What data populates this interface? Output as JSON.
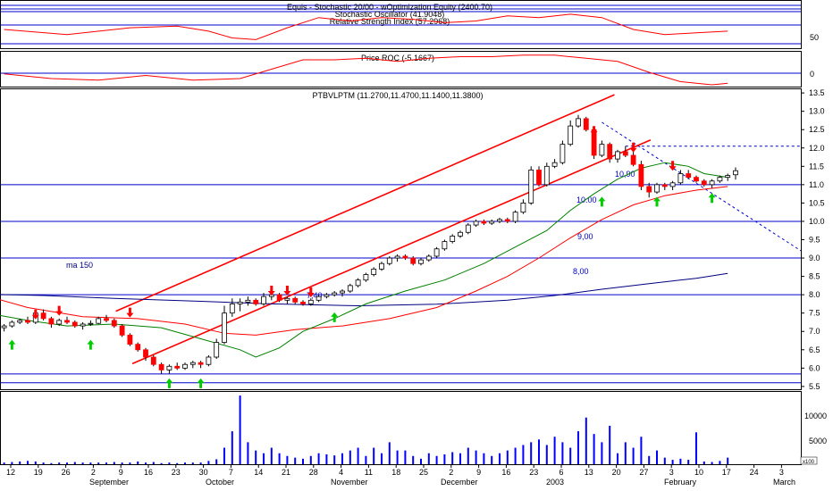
{
  "panels": {
    "indicator_title_1": "Equis - Stochastic 20/00 - wOptimization Equity (2400.70)",
    "indicator_title_2": "Stochastic Oscillator (41.9048)",
    "indicator_title_3": "Relative Strength Index (57.2968)",
    "roc_title": "Price ROC (-5.1667)",
    "price_title": "PTBVLPTM (11.2700,11.4700,11.1400,11.3800)"
  },
  "indicator_axis_labels": [
    "50"
  ],
  "roc_axis_labels": [
    "0"
  ],
  "volume_axis_labels": [
    "10000",
    "5000"
  ],
  "volume_multiplier": "x100",
  "annotations": {
    "ma_label": "ma 150",
    "level_740": "7,40",
    "level_1090": "10,90",
    "level_1000": "10.00",
    "level_900": "9,00",
    "level_800": "8,00"
  },
  "x_day_labels": [
    "12",
    "19",
    "26",
    "2",
    "9",
    "16",
    "23",
    "30",
    "7",
    "14",
    "21",
    "28",
    "4",
    "11",
    "18",
    "25",
    "2",
    "9",
    "16",
    "23",
    "6",
    "13",
    "20",
    "27",
    "3",
    "10",
    "17",
    "24",
    "3"
  ],
  "x_month_labels": [
    "September",
    "October",
    "November",
    "December",
    "2003",
    "February",
    "March"
  ],
  "colors": {
    "up_candle": "#ffffff",
    "down_candle": "#ff0000",
    "ma_fast": "#008000",
    "ma_slow": "#ff0000",
    "ma_150": "#000080",
    "channel": "#ff0000",
    "levels": "#0000cc",
    "volume": "#0000ff",
    "up_arrow": "#00cc00",
    "down_arrow": "#ff0000"
  },
  "chart_data": {
    "type": "candlestick",
    "title": "PTBVLPTM",
    "ylim": [
      5.4,
      13.6
    ],
    "y_ticks": [
      5.5,
      6.0,
      6.5,
      7.0,
      7.5,
      8.0,
      8.5,
      9.0,
      9.5,
      10.0,
      10.5,
      11.0,
      11.5,
      12.0,
      12.5,
      13.0,
      13.5
    ],
    "y_tick_labels": [
      "5.5",
      "6.0",
      "6.5",
      "7.0",
      "7.5",
      "8.0",
      "8.5",
      "9.0",
      "9.5",
      "10.0",
      "10.5",
      "11.0",
      "11.5",
      "12.0",
      "12.5",
      "13.0",
      "13.5"
    ],
    "volume_ylim": [
      0,
      13000
    ],
    "horizontal_levels": [
      5.6,
      5.84,
      8.0,
      9.0,
      10.0,
      11.0
    ],
    "dashed_level": 12.05,
    "channel_lines": [
      {
        "from_day": 14.2,
        "from": 7.55,
        "to_day": 77.6,
        "to": 13.45
      },
      {
        "from_day": 16.3,
        "from": 6.12,
        "to_day": 82.2,
        "to": 12.22
      }
    ],
    "ma_150": [
      [
        -3.6,
        8.02
      ],
      [
        5,
        7.98
      ],
      [
        14,
        7.9
      ],
      [
        25,
        7.82
      ],
      [
        34,
        7.75
      ],
      [
        45,
        7.7
      ],
      [
        55,
        7.74
      ],
      [
        64,
        7.85
      ],
      [
        70,
        7.98
      ],
      [
        76,
        8.15
      ],
      [
        82,
        8.3
      ],
      [
        88,
        8.45
      ],
      [
        92,
        8.58
      ]
    ],
    "ma_fast": [
      [
        -3.6,
        7.55
      ],
      [
        3,
        7.3
      ],
      [
        8,
        7.15
      ],
      [
        14,
        7.2
      ],
      [
        20,
        7.1
      ],
      [
        25,
        6.8
      ],
      [
        30,
        6.5
      ],
      [
        32,
        6.3
      ],
      [
        35,
        6.55
      ],
      [
        38,
        7.0
      ],
      [
        42,
        7.35
      ],
      [
        46,
        7.75
      ],
      [
        51,
        8.1
      ],
      [
        56,
        8.4
      ],
      [
        61,
        8.85
      ],
      [
        65,
        9.3
      ],
      [
        69,
        9.75
      ],
      [
        72,
        10.3
      ],
      [
        75,
        10.75
      ],
      [
        78,
        11.15
      ],
      [
        81,
        11.45
      ],
      [
        84,
        11.6
      ],
      [
        87,
        11.5
      ],
      [
        89,
        11.3
      ],
      [
        92,
        11.2
      ]
    ],
    "ma_slow": [
      [
        -3.6,
        8.05
      ],
      [
        3,
        7.65
      ],
      [
        10,
        7.4
      ],
      [
        17,
        7.35
      ],
      [
        23,
        7.2
      ],
      [
        28,
        6.95
      ],
      [
        32,
        6.9
      ],
      [
        37,
        7.05
      ],
      [
        43,
        7.15
      ],
      [
        49,
        7.35
      ],
      [
        55,
        7.65
      ],
      [
        60,
        8.1
      ],
      [
        64,
        8.5
      ],
      [
        68,
        9.0
      ],
      [
        72,
        9.55
      ],
      [
        76,
        10.05
      ],
      [
        80,
        10.45
      ],
      [
        84,
        10.7
      ],
      [
        88,
        10.85
      ],
      [
        92,
        10.95
      ]
    ],
    "candles": [
      {
        "o": 7.1,
        "h": 7.2,
        "l": 7.0,
        "c": 7.15
      },
      {
        "o": 7.15,
        "h": 7.3,
        "l": 7.1,
        "c": 7.25
      },
      {
        "o": 7.25,
        "h": 7.35,
        "l": 7.2,
        "c": 7.3
      },
      {
        "o": 7.3,
        "h": 7.4,
        "l": 7.2,
        "c": 7.25
      },
      {
        "o": 7.25,
        "h": 7.55,
        "l": 7.2,
        "c": 7.5
      },
      {
        "o": 7.5,
        "h": 7.6,
        "l": 7.3,
        "c": 7.35
      },
      {
        "o": 7.35,
        "h": 7.4,
        "l": 7.1,
        "c": 7.2
      },
      {
        "o": 7.2,
        "h": 7.35,
        "l": 7.15,
        "c": 7.3
      },
      {
        "o": 7.3,
        "h": 7.4,
        "l": 7.2,
        "c": 7.25
      },
      {
        "o": 7.25,
        "h": 7.3,
        "l": 7.1,
        "c": 7.15
      },
      {
        "o": 7.15,
        "h": 7.25,
        "l": 7.05,
        "c": 7.2
      },
      {
        "o": 7.2,
        "h": 7.3,
        "l": 7.15,
        "c": 7.22
      },
      {
        "o": 7.22,
        "h": 7.4,
        "l": 7.2,
        "c": 7.35
      },
      {
        "o": 7.35,
        "h": 7.45,
        "l": 7.25,
        "c": 7.3
      },
      {
        "o": 7.3,
        "h": 7.35,
        "l": 7.1,
        "c": 7.15
      },
      {
        "o": 7.15,
        "h": 7.2,
        "l": 6.85,
        "c": 6.9
      },
      {
        "o": 6.9,
        "h": 6.95,
        "l": 6.6,
        "c": 6.65
      },
      {
        "o": 6.65,
        "h": 6.7,
        "l": 6.45,
        "c": 6.5
      },
      {
        "o": 6.5,
        "h": 6.55,
        "l": 6.2,
        "c": 6.3
      },
      {
        "o": 6.3,
        "h": 6.35,
        "l": 6.05,
        "c": 6.1
      },
      {
        "o": 6.1,
        "h": 6.15,
        "l": 5.85,
        "c": 5.95
      },
      {
        "o": 5.95,
        "h": 6.1,
        "l": 5.85,
        "c": 6.05
      },
      {
        "o": 6.05,
        "h": 6.15,
        "l": 5.95,
        "c": 6.0
      },
      {
        "o": 6.0,
        "h": 6.15,
        "l": 5.95,
        "c": 6.1
      },
      {
        "o": 6.1,
        "h": 6.2,
        "l": 6.0,
        "c": 6.15
      },
      {
        "o": 6.15,
        "h": 6.2,
        "l": 6.0,
        "c": 6.1
      },
      {
        "o": 6.1,
        "h": 6.35,
        "l": 6.05,
        "c": 6.3
      },
      {
        "o": 6.3,
        "h": 6.8,
        "l": 6.25,
        "c": 6.7
      },
      {
        "o": 6.7,
        "h": 7.7,
        "l": 6.65,
        "c": 7.5
      },
      {
        "o": 7.5,
        "h": 7.9,
        "l": 7.4,
        "c": 7.75
      },
      {
        "o": 7.75,
        "h": 7.9,
        "l": 7.55,
        "c": 7.8
      },
      {
        "o": 7.8,
        "h": 7.95,
        "l": 7.7,
        "c": 7.85
      },
      {
        "o": 7.85,
        "h": 7.9,
        "l": 7.7,
        "c": 7.75
      },
      {
        "o": 7.75,
        "h": 8.05,
        "l": 7.7,
        "c": 7.95
      },
      {
        "o": 7.95,
        "h": 8.1,
        "l": 7.85,
        "c": 8.0
      },
      {
        "o": 8.0,
        "h": 8.05,
        "l": 7.8,
        "c": 7.85
      },
      {
        "o": 7.85,
        "h": 7.95,
        "l": 7.75,
        "c": 7.9
      },
      {
        "o": 7.9,
        "h": 7.95,
        "l": 7.75,
        "c": 7.8
      },
      {
        "o": 7.8,
        "h": 7.85,
        "l": 7.7,
        "c": 7.75
      },
      {
        "o": 7.75,
        "h": 7.9,
        "l": 7.7,
        "c": 7.85
      },
      {
        "o": 7.85,
        "h": 8.0,
        "l": 7.8,
        "c": 7.95
      },
      {
        "o": 7.95,
        "h": 8.05,
        "l": 7.9,
        "c": 8.0
      },
      {
        "o": 8.0,
        "h": 8.1,
        "l": 7.95,
        "c": 8.05
      },
      {
        "o": 8.05,
        "h": 8.15,
        "l": 7.95,
        "c": 8.1
      },
      {
        "o": 8.1,
        "h": 8.3,
        "l": 8.05,
        "c": 8.25
      },
      {
        "o": 8.25,
        "h": 8.45,
        "l": 8.2,
        "c": 8.4
      },
      {
        "o": 8.4,
        "h": 8.6,
        "l": 8.35,
        "c": 8.55
      },
      {
        "o": 8.55,
        "h": 8.75,
        "l": 8.5,
        "c": 8.7
      },
      {
        "o": 8.7,
        "h": 8.9,
        "l": 8.65,
        "c": 8.85
      },
      {
        "o": 8.85,
        "h": 9.05,
        "l": 8.8,
        "c": 9.0
      },
      {
        "o": 9.0,
        "h": 9.1,
        "l": 8.9,
        "c": 9.05
      },
      {
        "o": 9.05,
        "h": 9.1,
        "l": 8.95,
        "c": 9.0
      },
      {
        "o": 9.0,
        "h": 9.05,
        "l": 8.8,
        "c": 8.85
      },
      {
        "o": 8.85,
        "h": 9.0,
        "l": 8.8,
        "c": 8.95
      },
      {
        "o": 8.95,
        "h": 9.1,
        "l": 8.9,
        "c": 9.05
      },
      {
        "o": 9.05,
        "h": 9.3,
        "l": 9.0,
        "c": 9.25
      },
      {
        "o": 9.25,
        "h": 9.5,
        "l": 9.2,
        "c": 9.45
      },
      {
        "o": 9.45,
        "h": 9.65,
        "l": 9.4,
        "c": 9.6
      },
      {
        "o": 9.6,
        "h": 9.75,
        "l": 9.55,
        "c": 9.7
      },
      {
        "o": 9.7,
        "h": 9.95,
        "l": 9.65,
        "c": 9.9
      },
      {
        "o": 9.9,
        "h": 10.05,
        "l": 9.85,
        "c": 10.0
      },
      {
        "o": 10.0,
        "h": 10.05,
        "l": 9.9,
        "c": 9.95
      },
      {
        "o": 9.95,
        "h": 10.05,
        "l": 9.9,
        "c": 10.0
      },
      {
        "o": 10.0,
        "h": 10.1,
        "l": 9.95,
        "c": 10.05
      },
      {
        "o": 10.05,
        "h": 10.1,
        "l": 9.95,
        "c": 10.0
      },
      {
        "o": 10.0,
        "h": 10.3,
        "l": 9.95,
        "c": 10.25
      },
      {
        "o": 10.25,
        "h": 10.6,
        "l": 10.2,
        "c": 10.5
      },
      {
        "o": 10.5,
        "h": 11.5,
        "l": 10.45,
        "c": 11.4
      },
      {
        "o": 11.4,
        "h": 11.5,
        "l": 10.95,
        "c": 11.0
      },
      {
        "o": 11.0,
        "h": 11.6,
        "l": 10.95,
        "c": 11.5
      },
      {
        "o": 11.5,
        "h": 11.7,
        "l": 11.45,
        "c": 11.6
      },
      {
        "o": 11.6,
        "h": 12.2,
        "l": 11.55,
        "c": 12.1
      },
      {
        "o": 12.1,
        "h": 12.75,
        "l": 12.05,
        "c": 12.6
      },
      {
        "o": 12.6,
        "h": 12.9,
        "l": 12.55,
        "c": 12.8
      },
      {
        "o": 12.8,
        "h": 12.85,
        "l": 12.45,
        "c": 12.5
      },
      {
        "o": 12.5,
        "h": 12.55,
        "l": 11.7,
        "c": 11.8
      },
      {
        "o": 11.8,
        "h": 12.2,
        "l": 11.75,
        "c": 12.1
      },
      {
        "o": 12.1,
        "h": 12.15,
        "l": 11.6,
        "c": 11.7
      },
      {
        "o": 11.7,
        "h": 11.95,
        "l": 11.6,
        "c": 11.9
      },
      {
        "o": 11.9,
        "h": 12.05,
        "l": 11.75,
        "c": 11.8
      },
      {
        "o": 11.8,
        "h": 11.95,
        "l": 11.5,
        "c": 11.55
      },
      {
        "o": 11.55,
        "h": 11.65,
        "l": 10.85,
        "c": 10.95
      },
      {
        "o": 10.95,
        "h": 11.05,
        "l": 10.65,
        "c": 10.8
      },
      {
        "o": 10.8,
        "h": 11.05,
        "l": 10.75,
        "c": 11.0
      },
      {
        "o": 11.0,
        "h": 11.05,
        "l": 10.85,
        "c": 10.95
      },
      {
        "o": 10.95,
        "h": 11.1,
        "l": 10.85,
        "c": 11.05
      },
      {
        "o": 11.05,
        "h": 11.4,
        "l": 11.0,
        "c": 11.3
      },
      {
        "o": 11.3,
        "h": 11.4,
        "l": 11.15,
        "c": 11.2
      },
      {
        "o": 11.2,
        "h": 11.25,
        "l": 11.05,
        "c": 11.1
      },
      {
        "o": 11.1,
        "h": 11.15,
        "l": 10.95,
        "c": 11.0
      },
      {
        "o": 11.0,
        "h": 11.15,
        "l": 10.9,
        "c": 11.1
      },
      {
        "o": 11.1,
        "h": 11.25,
        "l": 11.05,
        "c": 11.2
      },
      {
        "o": 11.2,
        "h": 11.3,
        "l": 11.1,
        "c": 11.25
      },
      {
        "o": 11.27,
        "h": 11.47,
        "l": 11.14,
        "c": 11.38
      }
    ],
    "volume": [
      300,
      400,
      500,
      600,
      500,
      300,
      200,
      300,
      300,
      400,
      300,
      300,
      300,
      300,
      400,
      300,
      300,
      500,
      300,
      400,
      200,
      300,
      200,
      300,
      300,
      300,
      600,
      900,
      3000,
      6000,
      12500,
      4000,
      2500,
      2000,
      3000,
      2000,
      1500,
      1200,
      1000,
      1500,
      2000,
      1800,
      1600,
      2000,
      2500,
      3000,
      1500,
      3000,
      2000,
      4000,
      2500,
      2500,
      1500,
      1000,
      2000,
      1500,
      1800,
      2200,
      2000,
      3000,
      2500,
      2000,
      1500,
      2000,
      2500,
      3000,
      3500,
      4000,
      4500,
      3500,
      5000,
      4000,
      3000,
      6000,
      8500,
      5500,
      4000,
      7000,
      2000,
      4000,
      3000,
      5000,
      1500,
      2500,
      1200,
      800,
      1000,
      800,
      5800,
      500,
      400,
      600,
      1200
    ],
    "arrows_up": [
      [
        1,
        6.6
      ],
      [
        11,
        6.6
      ],
      [
        21,
        5.55
      ],
      [
        25,
        5.55
      ],
      [
        42,
        7.35
      ],
      [
        76,
        10.5
      ],
      [
        83,
        10.5
      ],
      [
        90,
        10.6
      ]
    ],
    "arrows_down": [
      [
        4,
        7.5
      ],
      [
        7,
        7.6
      ],
      [
        16,
        7.55
      ],
      [
        34,
        8.15
      ],
      [
        36,
        8.15
      ],
      [
        39,
        8.1
      ],
      [
        75,
        12.5
      ],
      [
        80,
        12.05
      ],
      [
        85,
        11.55
      ]
    ]
  },
  "indicator_series": [
    [
      0,
      0.5
    ],
    [
      8,
      0.35
    ],
    [
      16,
      0.55
    ],
    [
      22,
      0.6
    ],
    [
      26,
      0.45
    ],
    [
      29,
      0.25
    ],
    [
      32,
      0.2
    ],
    [
      36,
      0.55
    ],
    [
      40,
      0.85
    ],
    [
      44,
      0.75
    ],
    [
      48,
      0.85
    ],
    [
      52,
      0.8
    ],
    [
      56,
      0.7
    ],
    [
      60,
      0.75
    ],
    [
      64,
      0.9
    ],
    [
      68,
      0.85
    ],
    [
      72,
      0.95
    ],
    [
      76,
      0.85
    ],
    [
      80,
      0.5
    ],
    [
      84,
      0.35
    ],
    [
      88,
      0.4
    ],
    [
      92,
      0.45
    ]
  ],
  "roc_series": [
    [
      0,
      0.35
    ],
    [
      6,
      0.2
    ],
    [
      12,
      0.15
    ],
    [
      18,
      0.3
    ],
    [
      24,
      0.15
    ],
    [
      30,
      0.2
    ],
    [
      34,
      0.5
    ],
    [
      38,
      0.8
    ],
    [
      42,
      0.8
    ],
    [
      46,
      0.85
    ],
    [
      50,
      0.75
    ],
    [
      54,
      0.85
    ],
    [
      58,
      0.9
    ],
    [
      62,
      0.9
    ],
    [
      66,
      0.95
    ],
    [
      70,
      0.95
    ],
    [
      74,
      0.85
    ],
    [
      78,
      0.75
    ],
    [
      82,
      0.4
    ],
    [
      86,
      0.1
    ],
    [
      90,
      0.0
    ],
    [
      92,
      0.05
    ]
  ]
}
